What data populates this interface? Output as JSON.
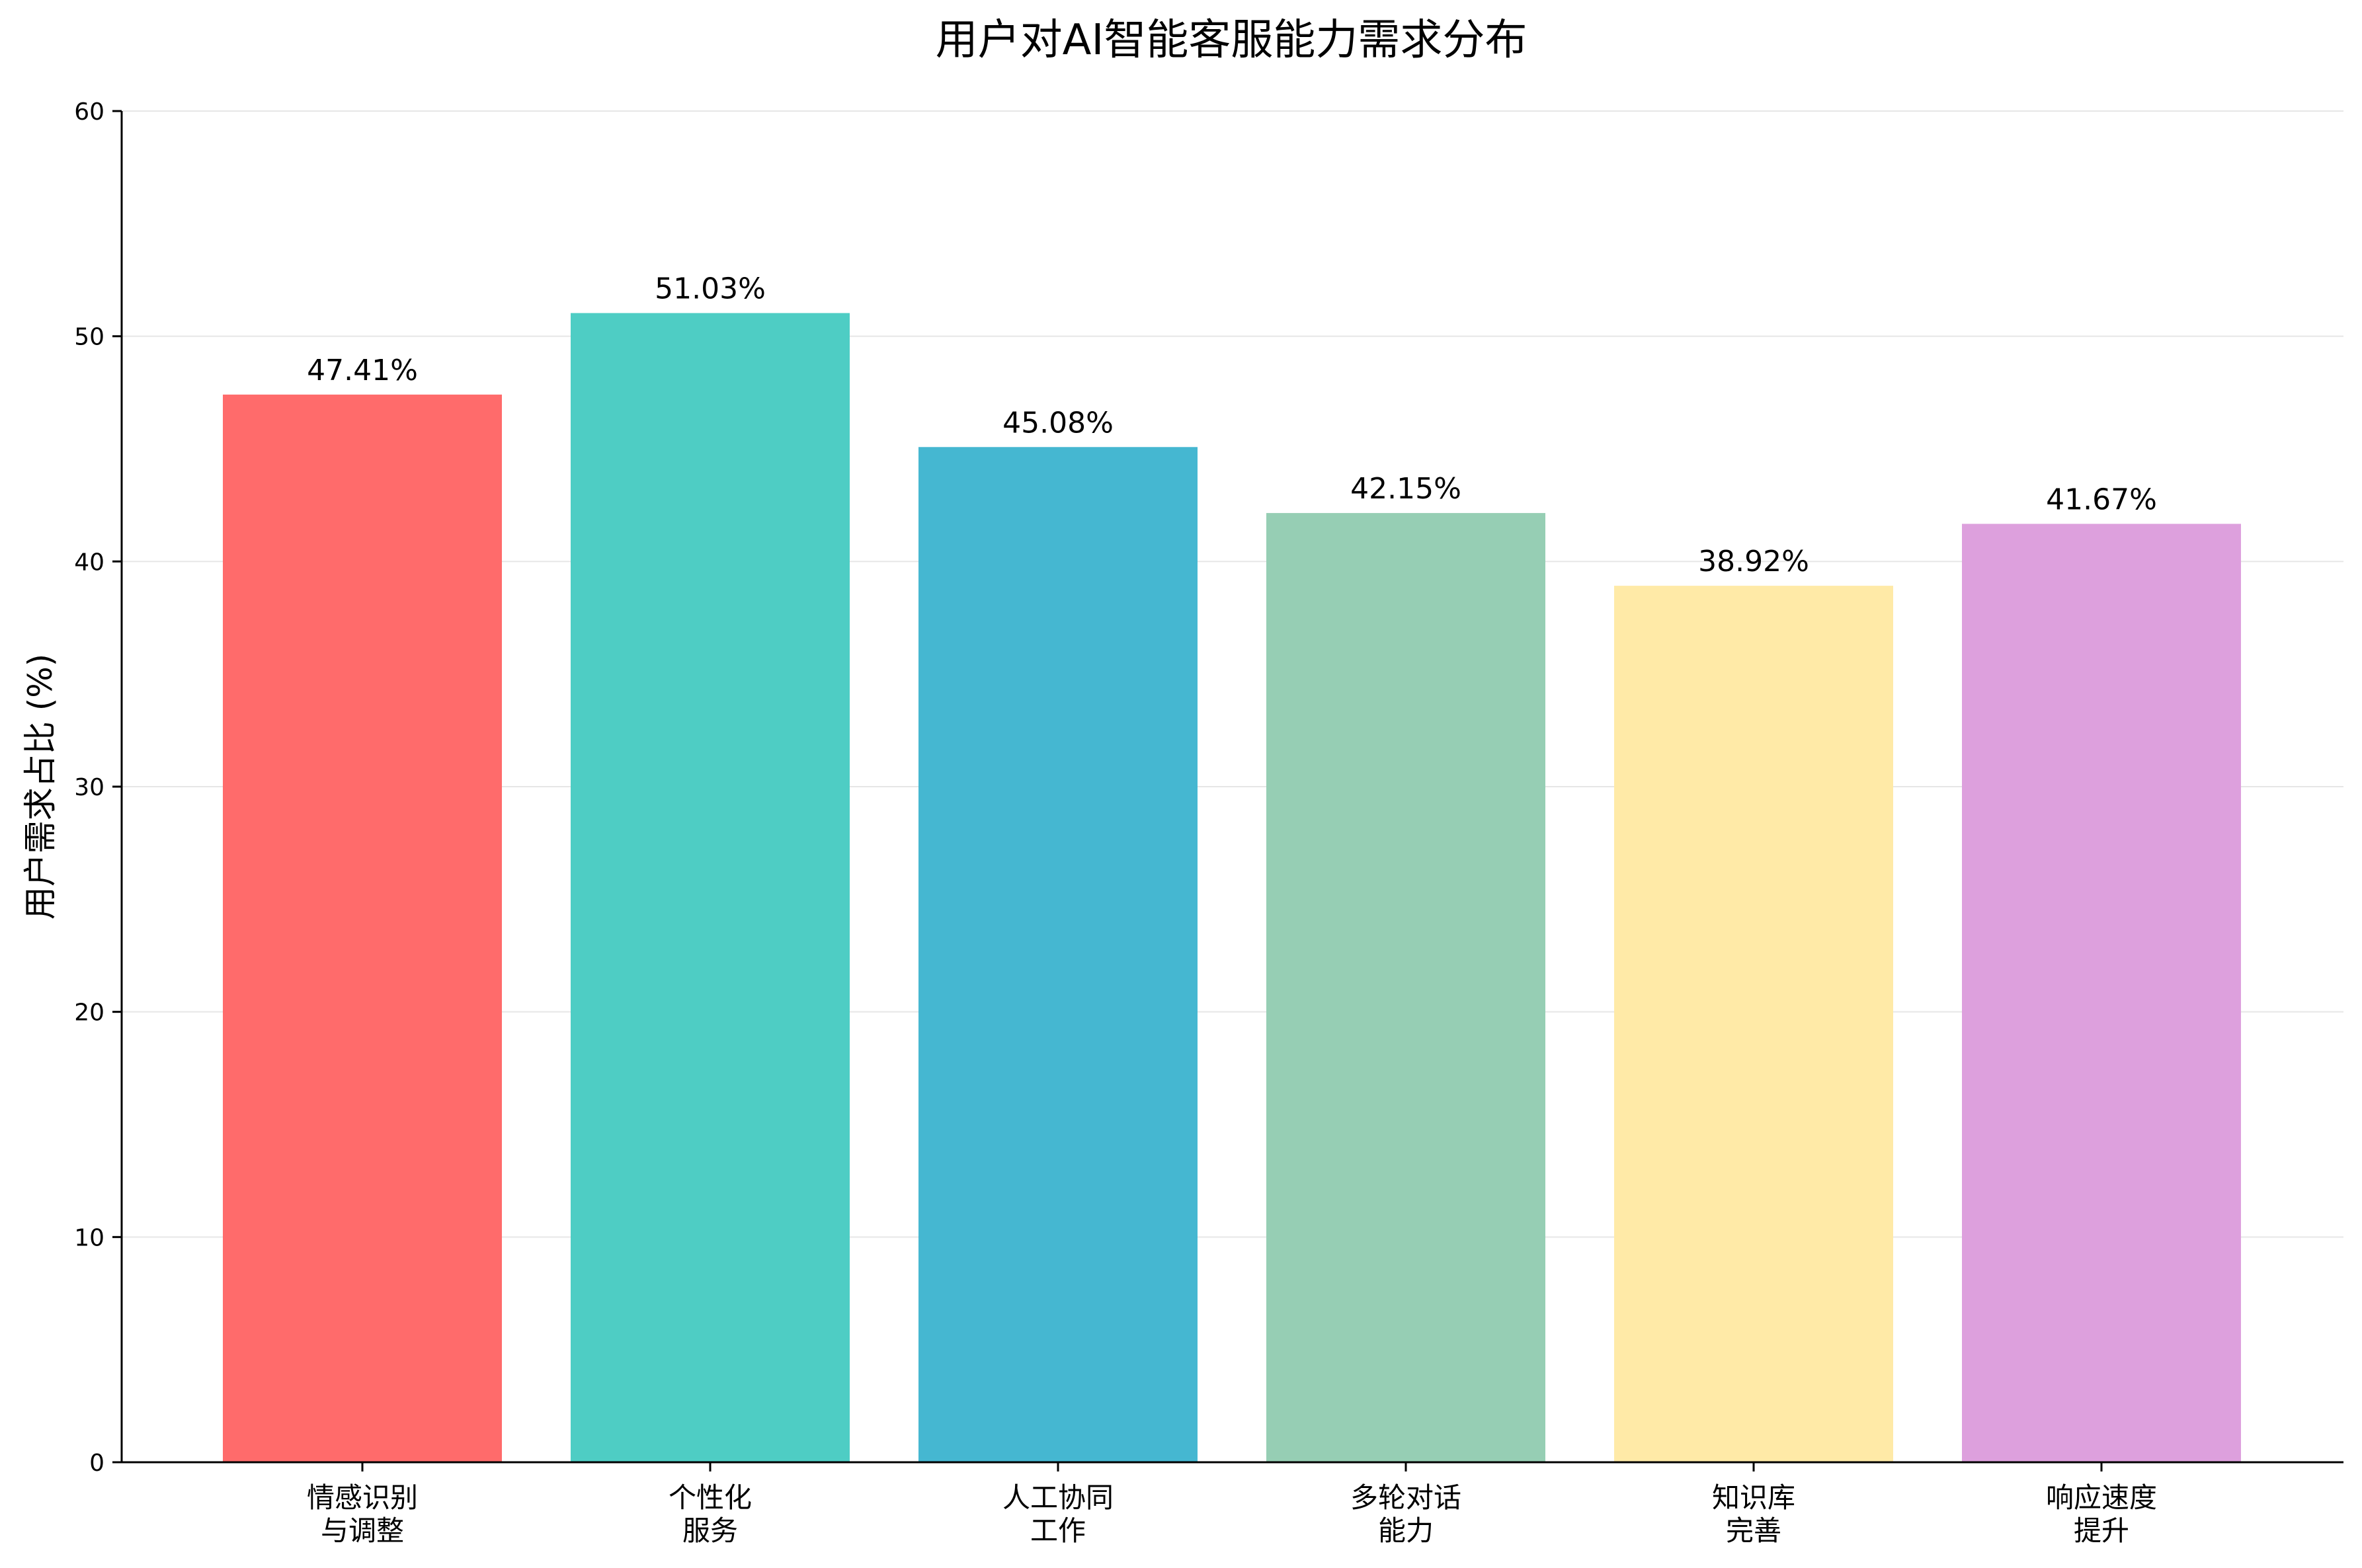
{
  "chart_data": {
    "type": "bar",
    "title": "用户对AI智能客服能力需求分布",
    "xlabel": "",
    "ylabel": "用户需求占比 (%)",
    "ylim": [
      0,
      60
    ],
    "yticks": [
      0,
      10,
      20,
      30,
      40,
      50,
      60
    ],
    "grid": "horizontal",
    "categories": [
      [
        "情感识别",
        "与调整"
      ],
      [
        "个性化",
        "服务"
      ],
      [
        "人工协同",
        "工作"
      ],
      [
        "多轮对话",
        "能力"
      ],
      [
        "知识库",
        "完善"
      ],
      [
        "响应速度",
        "提升"
      ]
    ],
    "values": [
      47.41,
      51.03,
      45.08,
      42.15,
      38.92,
      41.67
    ],
    "value_labels": [
      "47.41%",
      "51.03%",
      "45.08%",
      "42.15%",
      "38.92%",
      "41.67%"
    ],
    "colors": [
      "#ff6b6b",
      "#4ecdc4",
      "#45b7d1",
      "#96ceb4",
      "#ffeaa7",
      "#dda0dd"
    ]
  }
}
